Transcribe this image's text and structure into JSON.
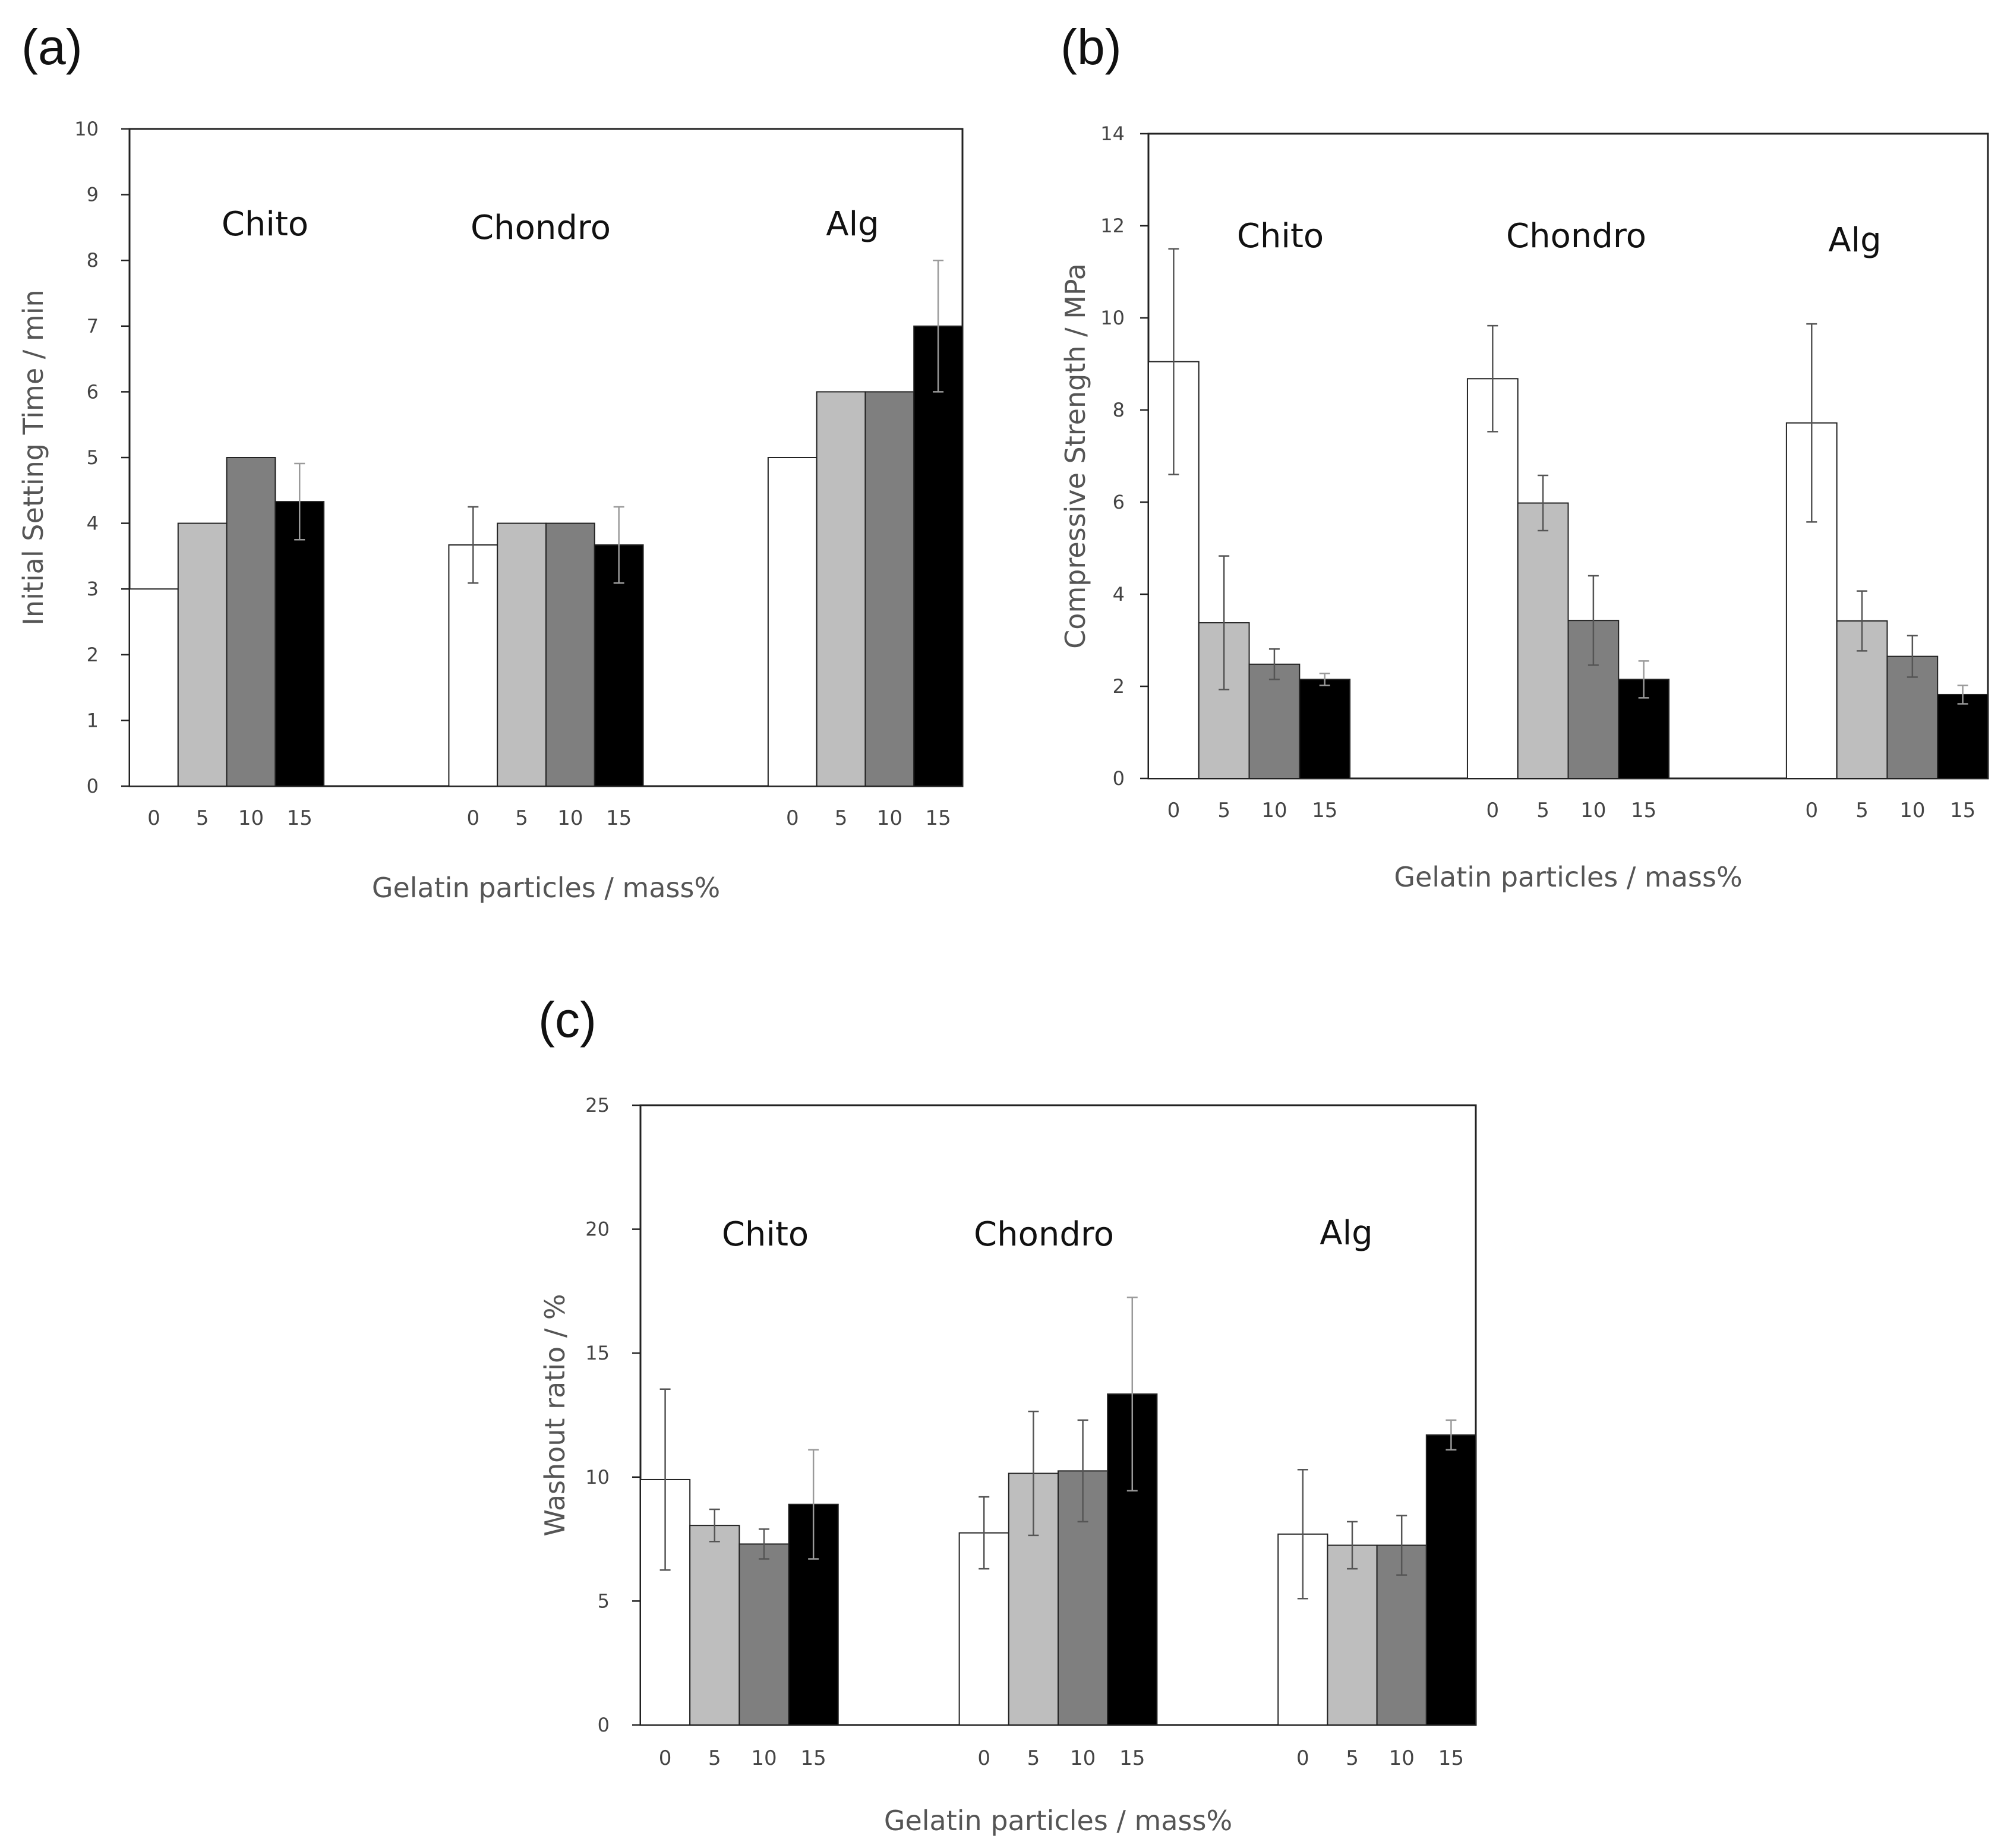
{
  "figure": {
    "colors": {
      "0": "#ffffff",
      "5": "#bebebe",
      "10": "#7f7f7f",
      "15": "#000000",
      "axis": "#222222",
      "errorbar": "#555555"
    }
  },
  "chart_data": [
    {
      "panel": "(a)",
      "type": "bar",
      "title": "",
      "xlabel": "Gelatin particles / mass%",
      "ylabel": "Initial Setting Time / min",
      "ylim": [
        0,
        10
      ],
      "yticks": [
        "0",
        "1",
        "2",
        "3",
        "4",
        "5",
        "6",
        "7",
        "8",
        "9",
        "10"
      ],
      "groups": [
        "Chito",
        "Chondro",
        "Alg"
      ],
      "categories": [
        "0",
        "5",
        "10",
        "15"
      ],
      "series": [
        {
          "name": "Chito",
          "values": [
            3.0,
            4.0,
            5.0,
            4.33
          ],
          "errors": [
            0,
            0,
            0,
            0.58
          ]
        },
        {
          "name": "Chondro",
          "values": [
            3.67,
            4.0,
            4.0,
            3.67
          ],
          "errors": [
            0.58,
            0,
            0,
            0.58
          ]
        },
        {
          "name": "Alg",
          "values": [
            5.0,
            6.0,
            6.0,
            7.0
          ],
          "errors": [
            0,
            0,
            0,
            1.0
          ]
        }
      ]
    },
    {
      "panel": "(b)",
      "type": "bar",
      "title": "",
      "xlabel": "Gelatin particles / mass%",
      "ylabel": "Compressive Strength / MPa",
      "ylim": [
        0,
        14
      ],
      "yticks": [
        "0",
        "2",
        "4",
        "6",
        "8",
        "10",
        "12",
        "14"
      ],
      "groups": [
        "Chito",
        "Chondro",
        "Alg"
      ],
      "categories": [
        "0",
        "5",
        "10",
        "15"
      ],
      "series": [
        {
          "name": "Chito",
          "values": [
            9.05,
            3.38,
            2.48,
            2.15
          ],
          "errors": [
            2.45,
            1.45,
            0.33,
            0.13
          ]
        },
        {
          "name": "Chondro",
          "values": [
            8.68,
            5.98,
            3.43,
            2.15
          ],
          "errors": [
            1.15,
            0.6,
            0.97,
            0.4
          ]
        },
        {
          "name": "Alg",
          "values": [
            7.72,
            3.42,
            2.65,
            1.82
          ],
          "errors": [
            2.15,
            0.65,
            0.45,
            0.2
          ]
        }
      ]
    },
    {
      "panel": "(c)",
      "type": "bar",
      "title": "",
      "xlabel": "Gelatin particles / mass%",
      "ylabel": "Washout ratio / %",
      "ylim": [
        0,
        25
      ],
      "yticks": [
        "0",
        "5",
        "10",
        "15",
        "20",
        "25"
      ],
      "groups": [
        "Chito",
        "Chondro",
        "Alg"
      ],
      "categories": [
        "0",
        "5",
        "10",
        "15"
      ],
      "series": [
        {
          "name": "Chito",
          "values": [
            9.9,
            8.05,
            7.3,
            8.9
          ],
          "errors": [
            3.65,
            0.65,
            0.6,
            2.2
          ]
        },
        {
          "name": "Chondro",
          "values": [
            7.75,
            10.15,
            10.25,
            13.35
          ],
          "errors": [
            1.45,
            2.5,
            2.05,
            3.9
          ]
        },
        {
          "name": "Alg",
          "values": [
            7.7,
            7.25,
            7.25,
            11.7
          ],
          "errors": [
            2.6,
            0.95,
            1.2,
            0.6
          ]
        }
      ]
    }
  ]
}
